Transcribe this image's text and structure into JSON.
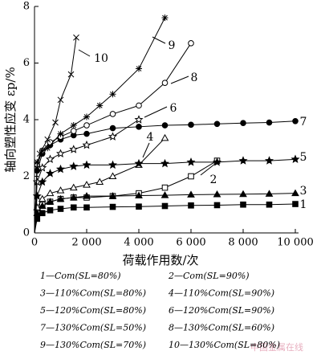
{
  "chart_data": {
    "type": "line",
    "ylabel": "轴向塑性应变 εp/%",
    "xlabel": "荷载作用数/次",
    "xlim": [
      0,
      10000
    ],
    "ylim": [
      0,
      8
    ],
    "xticks": [
      0,
      {
        "value": 2000,
        "label": "2 000"
      },
      {
        "value": 4000,
        "label": "4 000"
      },
      {
        "value": 6000,
        "label": "6 000"
      },
      {
        "value": 8000,
        "label": "8 000"
      },
      {
        "value": 10000,
        "label": "10 000"
      }
    ],
    "yticks": [
      0,
      2,
      4,
      6,
      8
    ],
    "color": "#000000",
    "series": [
      {
        "name": "1",
        "marker": "square",
        "x": [
          0,
          100,
          300,
          600,
          1000,
          1500,
          2000,
          3000,
          4000,
          5000,
          6000,
          7000,
          8000,
          9000,
          10000
        ],
        "values": [
          0,
          0.5,
          0.7,
          0.8,
          0.85,
          0.9,
          0.9,
          0.92,
          0.93,
          0.95,
          0.97,
          0.98,
          1.0,
          1.0,
          1.02
        ]
      },
      {
        "name": "2",
        "marker": "square-open",
        "x": [
          0,
          100,
          300,
          600,
          1000,
          1500,
          2000,
          3000,
          4000,
          5000,
          6000,
          7000
        ],
        "values": [
          0,
          0.8,
          1.0,
          1.1,
          1.2,
          1.25,
          1.25,
          1.3,
          1.4,
          1.6,
          2.0,
          2.55
        ]
      },
      {
        "name": "3",
        "marker": "triangle",
        "x": [
          0,
          100,
          300,
          600,
          1000,
          1500,
          2000,
          3000,
          4000,
          5000,
          6000,
          7000,
          8000,
          9000,
          10000
        ],
        "values": [
          0,
          0.7,
          0.95,
          1.1,
          1.2,
          1.25,
          1.3,
          1.3,
          1.32,
          1.33,
          1.35,
          1.36,
          1.37,
          1.38,
          1.4
        ]
      },
      {
        "name": "4",
        "marker": "triangle-open",
        "x": [
          0,
          100,
          300,
          600,
          1000,
          1500,
          2000,
          2500,
          3000,
          4000,
          5000
        ],
        "values": [
          0,
          0.9,
          1.2,
          1.4,
          1.5,
          1.6,
          1.7,
          1.8,
          2.0,
          2.4,
          3.35
        ]
      },
      {
        "name": "5",
        "marker": "star",
        "x": [
          0,
          100,
          300,
          600,
          1000,
          1500,
          2000,
          3000,
          4000,
          5000,
          6000,
          7000,
          8000,
          9000,
          10000
        ],
        "values": [
          0,
          1.3,
          1.8,
          2.1,
          2.25,
          2.35,
          2.4,
          2.4,
          2.45,
          2.45,
          2.5,
          2.5,
          2.55,
          2.55,
          2.6
        ]
      },
      {
        "name": "6",
        "marker": "star-open",
        "x": [
          0,
          100,
          300,
          600,
          1000,
          1500,
          2000,
          3000,
          4000
        ],
        "values": [
          0,
          1.8,
          2.3,
          2.6,
          2.8,
          2.95,
          3.1,
          3.4,
          4.0
        ]
      },
      {
        "name": "7",
        "marker": "circle",
        "x": [
          0,
          100,
          300,
          600,
          1000,
          1500,
          2000,
          3000,
          4000,
          5000,
          6000,
          7000,
          8000,
          9000,
          10000
        ],
        "values": [
          0,
          2.2,
          2.8,
          3.1,
          3.3,
          3.45,
          3.5,
          3.7,
          3.75,
          3.8,
          3.82,
          3.85,
          3.88,
          3.9,
          3.95
        ]
      },
      {
        "name": "8",
        "marker": "circle-open",
        "x": [
          0,
          100,
          300,
          600,
          1000,
          1500,
          2000,
          3000,
          4000,
          5000,
          6000
        ],
        "values": [
          0,
          2.4,
          2.9,
          3.2,
          3.4,
          3.6,
          3.8,
          4.2,
          4.5,
          5.3,
          6.7
        ]
      },
      {
        "name": "9",
        "marker": "asterisk",
        "x": [
          0,
          100,
          300,
          500,
          1000,
          1500,
          2000,
          2500,
          3000,
          4000,
          5000
        ],
        "values": [
          0,
          2.5,
          2.9,
          3.0,
          3.5,
          3.8,
          4.1,
          4.5,
          4.9,
          5.8,
          7.6
        ]
      },
      {
        "name": "10",
        "marker": "cross",
        "x": [
          0,
          100,
          200,
          500,
          800,
          1000,
          1400,
          1600
        ],
        "values": [
          0,
          2.3,
          2.8,
          3.3,
          3.9,
          4.7,
          5.6,
          6.9
        ]
      }
    ],
    "legend": [
      "1—Com(SL=80%)",
      "2—Com(SL=90%)",
      "3—110%Com(SL=80%)",
      "4—110%Com(SL=90%)",
      "5—120%Com(SL=80%)",
      "6—120%Com(SL=90%)",
      "7—130%Com(SL=50%)",
      "8—130%Com(SL=60%)",
      "9—130%Com(SL=70%)",
      "10—130%Com(SL=80%)"
    ],
    "watermark": "中国金属在线"
  }
}
